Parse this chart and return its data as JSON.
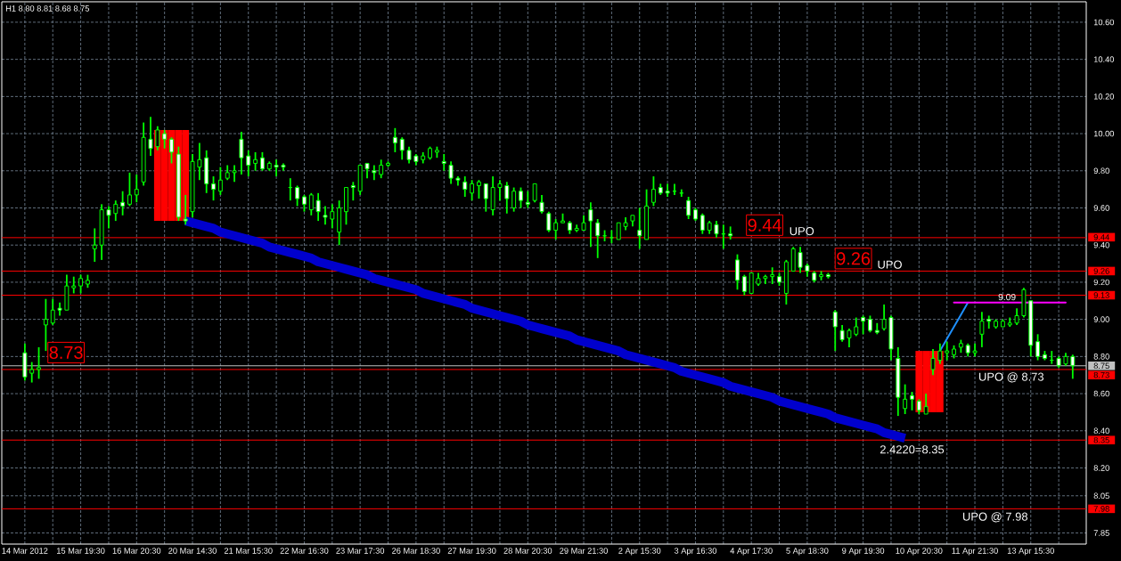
{
  "chart_data": {
    "type": "candlestick",
    "title": "H1 8.80 8.81 8.68 8.75",
    "color": "#00ff00",
    "categories": [
      "14 Mar 2012",
      null,
      null,
      null,
      null,
      null,
      null,
      null,
      "15 Mar 19:30",
      null,
      null,
      null,
      null,
      null,
      null,
      null,
      "16 Mar 20:30",
      null,
      null,
      null,
      null,
      null,
      null,
      null,
      "20 Mar 14:30",
      null,
      null,
      null,
      null,
      null,
      null,
      null,
      "21 Mar 15:30",
      null,
      null,
      null,
      null,
      null,
      null,
      null,
      "22 Mar 16:30",
      null,
      null,
      null,
      null,
      null,
      null,
      null,
      "23 Mar 17:30",
      null,
      null,
      null,
      null,
      null,
      null,
      null,
      "26 Mar 18:30",
      null,
      null,
      null,
      null,
      null,
      null,
      null,
      "27 Mar 19:30",
      null,
      null,
      null,
      null,
      null,
      null,
      null,
      "28 Mar 20:30",
      null,
      null,
      null,
      null,
      null,
      null,
      null,
      "29 Mar 21:30",
      null,
      null,
      null,
      null,
      null,
      null,
      null,
      "2 Apr 15:30",
      null,
      null,
      null,
      null,
      null,
      null,
      null,
      "3 Apr 16:30",
      null,
      null,
      null,
      null,
      null,
      null,
      null,
      "4 Apr 17:30",
      null,
      null,
      null,
      null,
      null,
      null,
      null,
      "5 Apr 18:30",
      null,
      null,
      null,
      null,
      null,
      null,
      null,
      "9 Apr 19:30",
      null,
      null,
      null,
      null,
      null,
      null,
      null,
      "10 Apr 20:30",
      null,
      null,
      null,
      null,
      null,
      null,
      null,
      "11 Apr 21:30",
      null,
      null,
      null,
      null,
      null,
      null,
      null,
      "13 Apr 15:30",
      null,
      null,
      null,
      null,
      null,
      null
    ],
    "ohlc": [
      [
        8.82,
        8.87,
        8.67,
        8.69
      ],
      [
        8.71,
        8.77,
        8.66,
        8.73
      ],
      [
        8.73,
        8.85,
        8.68,
        8.74
      ],
      [
        8.97,
        9.11,
        8.83,
        9.0
      ],
      [
        8.98,
        9.11,
        8.97,
        9.05
      ],
      [
        9.06,
        9.09,
        9.02,
        9.05
      ],
      [
        9.05,
        9.24,
        9.05,
        9.18
      ],
      [
        9.17,
        9.23,
        9.14,
        9.18
      ],
      [
        9.18,
        9.24,
        9.14,
        9.22
      ],
      [
        9.19,
        9.24,
        9.17,
        9.21
      ],
      [
        9.38,
        9.49,
        9.31,
        9.4
      ],
      [
        9.4,
        9.62,
        9.32,
        9.59
      ],
      [
        9.59,
        9.61,
        9.49,
        9.56
      ],
      [
        9.57,
        9.64,
        9.53,
        9.62
      ],
      [
        9.63,
        9.69,
        9.56,
        9.61
      ],
      [
        9.62,
        9.79,
        9.61,
        9.67
      ],
      [
        9.67,
        9.78,
        9.63,
        9.7
      ],
      [
        9.74,
        10.06,
        9.72,
        9.98
      ],
      [
        9.97,
        10.09,
        9.88,
        9.92
      ],
      [
        9.93,
        10.04,
        9.91,
        10.02
      ],
      [
        10.0,
        10.02,
        9.92,
        9.97
      ],
      [
        9.97,
        9.98,
        9.84,
        9.9
      ],
      [
        9.89,
        9.93,
        9.53,
        9.55
      ],
      [
        9.54,
        9.67,
        9.51,
        9.53
      ],
      [
        9.58,
        9.89,
        9.55,
        9.85
      ],
      [
        9.82,
        9.95,
        9.75,
        9.86
      ],
      [
        9.87,
        9.91,
        9.68,
        9.73
      ],
      [
        9.73,
        9.77,
        9.64,
        9.7
      ],
      [
        9.69,
        9.82,
        9.67,
        9.75
      ],
      [
        9.76,
        9.83,
        9.75,
        9.79
      ],
      [
        9.79,
        9.83,
        9.74,
        9.8
      ],
      [
        9.97,
        10.01,
        9.78,
        9.87
      ],
      [
        9.88,
        9.91,
        9.77,
        9.83
      ],
      [
        9.84,
        9.9,
        9.8,
        9.86
      ],
      [
        9.87,
        9.9,
        9.8,
        9.81
      ],
      [
        9.81,
        9.85,
        9.8,
        9.84
      ],
      [
        9.83,
        9.86,
        9.77,
        9.82
      ],
      [
        9.83,
        9.84,
        9.8,
        9.82
      ],
      [
        9.71,
        9.76,
        9.64,
        9.71
      ],
      [
        9.71,
        9.72,
        9.61,
        9.65
      ],
      [
        9.66,
        9.67,
        9.58,
        9.62
      ],
      [
        9.59,
        9.68,
        9.56,
        9.67
      ],
      [
        9.64,
        9.68,
        9.53,
        9.58
      ],
      [
        9.56,
        9.61,
        9.51,
        9.55
      ],
      [
        9.54,
        9.62,
        9.49,
        9.58
      ],
      [
        9.47,
        9.64,
        9.4,
        9.6
      ],
      [
        9.58,
        9.71,
        9.51,
        9.71
      ],
      [
        9.72,
        9.74,
        9.64,
        9.71
      ],
      [
        9.69,
        9.83,
        9.67,
        9.83
      ],
      [
        9.84,
        9.84,
        9.76,
        9.81
      ],
      [
        9.8,
        9.83,
        9.75,
        9.79
      ],
      [
        9.78,
        9.86,
        9.76,
        9.83
      ],
      [
        9.83,
        9.85,
        9.82,
        9.84
      ],
      [
        9.98,
        10.03,
        9.9,
        9.95
      ],
      [
        9.97,
        9.98,
        9.86,
        9.91
      ],
      [
        9.91,
        9.93,
        9.84,
        9.86
      ],
      [
        9.88,
        9.89,
        9.83,
        9.85
      ],
      [
        9.86,
        9.9,
        9.84,
        9.88
      ],
      [
        9.87,
        9.93,
        9.86,
        9.92
      ],
      [
        9.9,
        9.93,
        9.87,
        9.91
      ],
      [
        9.85,
        9.89,
        9.8,
        9.84
      ],
      [
        9.83,
        9.85,
        9.73,
        9.76
      ],
      [
        9.76,
        9.77,
        9.72,
        9.75
      ],
      [
        9.74,
        9.77,
        9.66,
        9.7
      ],
      [
        9.68,
        9.75,
        9.64,
        9.73
      ],
      [
        9.72,
        9.75,
        9.65,
        9.74
      ],
      [
        9.73,
        9.73,
        9.58,
        9.65
      ],
      [
        9.59,
        9.77,
        9.56,
        9.71
      ],
      [
        9.71,
        9.75,
        9.64,
        9.73
      ],
      [
        9.72,
        9.74,
        9.57,
        9.65
      ],
      [
        9.6,
        9.71,
        9.58,
        9.69
      ],
      [
        9.69,
        9.71,
        9.6,
        9.64
      ],
      [
        9.63,
        9.69,
        9.6,
        9.62
      ],
      [
        9.64,
        9.73,
        9.63,
        9.73
      ],
      [
        9.63,
        9.67,
        9.57,
        9.58
      ],
      [
        9.57,
        9.58,
        9.47,
        9.48
      ],
      [
        9.48,
        9.54,
        9.43,
        9.52
      ],
      [
        9.52,
        9.57,
        9.52,
        9.53
      ],
      [
        9.52,
        9.53,
        9.46,
        9.48
      ],
      [
        9.48,
        9.51,
        9.47,
        9.49
      ],
      [
        9.48,
        9.56,
        9.48,
        9.52
      ],
      [
        9.59,
        9.63,
        9.39,
        9.53
      ],
      [
        9.52,
        9.54,
        9.33,
        9.45
      ],
      [
        9.45,
        9.48,
        9.42,
        9.45
      ],
      [
        9.44,
        9.48,
        9.41,
        9.44
      ],
      [
        9.43,
        9.52,
        9.43,
        9.52
      ],
      [
        9.5,
        9.55,
        9.48,
        9.52
      ],
      [
        9.53,
        9.56,
        9.5,
        9.56
      ],
      [
        9.48,
        9.6,
        9.38,
        9.45
      ],
      [
        9.43,
        9.7,
        9.43,
        9.61
      ],
      [
        9.63,
        9.77,
        9.61,
        9.7
      ],
      [
        9.71,
        9.73,
        9.67,
        9.68
      ],
      [
        9.69,
        9.73,
        9.66,
        9.68
      ],
      [
        9.69,
        9.73,
        9.67,
        9.69
      ],
      [
        9.68,
        9.7,
        9.66,
        9.68
      ],
      [
        9.64,
        9.66,
        9.54,
        9.56
      ],
      [
        9.59,
        9.6,
        9.53,
        9.54
      ],
      [
        9.56,
        9.57,
        9.46,
        9.48
      ],
      [
        9.48,
        9.53,
        9.46,
        9.52
      ],
      [
        9.51,
        9.53,
        9.44,
        9.46
      ],
      [
        9.46,
        9.51,
        9.38,
        9.46
      ],
      [
        9.46,
        9.5,
        9.43,
        9.45
      ],
      [
        9.32,
        9.35,
        9.16,
        9.21
      ],
      [
        9.23,
        9.24,
        9.13,
        9.15
      ],
      [
        9.14,
        9.25,
        9.14,
        9.25
      ],
      [
        9.19,
        9.25,
        9.18,
        9.22
      ],
      [
        9.22,
        9.24,
        9.19,
        9.23
      ],
      [
        9.23,
        9.28,
        9.19,
        9.24
      ],
      [
        9.23,
        9.25,
        9.18,
        9.2
      ],
      [
        9.14,
        9.32,
        9.08,
        9.31
      ],
      [
        9.26,
        9.39,
        9.26,
        9.38
      ],
      [
        9.36,
        9.39,
        9.25,
        9.28
      ],
      [
        9.29,
        9.3,
        9.23,
        9.26
      ],
      [
        9.25,
        9.26,
        9.2,
        9.21
      ],
      [
        9.23,
        9.26,
        9.21,
        9.24
      ],
      [
        9.24,
        9.25,
        9.22,
        9.23
      ],
      [
        9.04,
        9.05,
        8.83,
        8.96
      ],
      [
        8.94,
        8.97,
        8.88,
        8.89
      ],
      [
        8.9,
        8.95,
        8.85,
        8.94
      ],
      [
        8.92,
        9.01,
        8.91,
        8.96
      ],
      [
        9.01,
        9.02,
        8.92,
        8.99
      ],
      [
        9.0,
        9.02,
        8.93,
        8.94
      ],
      [
        8.94,
        8.98,
        8.92,
        8.93
      ],
      [
        8.95,
        9.08,
        8.94,
        9.0
      ],
      [
        9.01,
        9.02,
        8.78,
        8.84
      ],
      [
        8.79,
        8.85,
        8.48,
        8.58
      ],
      [
        8.52,
        8.65,
        8.49,
        8.57
      ],
      [
        8.59,
        8.61,
        8.51,
        8.57
      ],
      [
        8.56,
        8.57,
        8.49,
        8.51
      ],
      [
        8.49,
        8.6,
        8.49,
        8.53
      ],
      [
        8.73,
        8.84,
        8.7,
        8.79
      ],
      [
        8.78,
        8.87,
        8.76,
        8.83
      ],
      [
        8.82,
        8.88,
        8.78,
        8.83
      ],
      [
        8.81,
        8.86,
        8.79,
        8.84
      ],
      [
        8.85,
        8.89,
        8.82,
        8.87
      ],
      [
        8.86,
        8.87,
        8.8,
        8.82
      ],
      [
        8.82,
        8.87,
        8.8,
        8.83
      ],
      [
        8.92,
        9.04,
        8.85,
        8.99
      ],
      [
        9.0,
        9.02,
        8.95,
        8.99
      ],
      [
        8.96,
        9.0,
        8.95,
        8.99
      ],
      [
        8.96,
        9.0,
        8.96,
        8.99
      ],
      [
        8.97,
        9.01,
        8.96,
        8.98
      ],
      [
        8.98,
        9.06,
        8.97,
        9.02
      ],
      [
        9.02,
        9.17,
        9.01,
        9.16
      ],
      [
        9.1,
        9.1,
        8.8,
        8.86
      ],
      [
        8.88,
        8.92,
        8.78,
        8.8
      ],
      [
        8.81,
        8.83,
        8.78,
        8.79
      ],
      [
        8.78,
        8.83,
        8.76,
        8.78
      ],
      [
        8.79,
        8.8,
        8.74,
        8.75
      ],
      [
        8.76,
        8.82,
        8.75,
        8.8
      ],
      [
        8.8,
        8.81,
        8.68,
        8.75
      ]
    ],
    "series": [
      {
        "type": "bar",
        "color": "#ff0000",
        "base": [
          null,
          null,
          null,
          null,
          null,
          null,
          null,
          null,
          null,
          null,
          null,
          null,
          null,
          null,
          null,
          null,
          null,
          null,
          null,
          9.53,
          9.53,
          9.53,
          9.53,
          9.53,
          null,
          null,
          null,
          null,
          null,
          null,
          null,
          null,
          null,
          null,
          null,
          null,
          null,
          null,
          null,
          null,
          null,
          null,
          null,
          null,
          null,
          null,
          null,
          null,
          null,
          null,
          null,
          null,
          null,
          null,
          null,
          null,
          null,
          null,
          null,
          null,
          null,
          null,
          null,
          null,
          null,
          null,
          null,
          null,
          null,
          null,
          null,
          null,
          null,
          null,
          null,
          null,
          null,
          null,
          null,
          null,
          null,
          null,
          null,
          null,
          null,
          null,
          null,
          null,
          null,
          null,
          null,
          null,
          null,
          null,
          null,
          null,
          null,
          null,
          null,
          null,
          null,
          null,
          null,
          null,
          null,
          null,
          null,
          null,
          null,
          null,
          null,
          null,
          null,
          null,
          null,
          null,
          null,
          null,
          null,
          null,
          null,
          null,
          null,
          null,
          null,
          null,
          null,
          null,
          null,
          null,
          null,
          null,
          null,
          null,
          null,
          null,
          null,
          null,
          null,
          null,
          null,
          null,
          null,
          null,
          null,
          null,
          null,
          null,
          null,
          null,
          null
        ],
        "values": [
          null,
          null,
          null,
          null,
          null,
          null,
          null,
          null,
          null,
          null,
          null,
          null,
          null,
          null,
          null,
          null,
          null,
          null,
          null,
          0.49,
          0.49,
          0.49,
          0.49,
          0.49,
          null,
          null,
          null,
          null,
          null,
          null,
          null,
          null,
          null,
          null,
          null,
          null,
          null,
          null,
          null,
          null,
          null,
          null,
          null,
          null,
          null,
          null,
          null,
          null,
          null,
          null,
          null,
          null,
          null,
          null,
          null,
          null,
          null,
          null,
          null,
          null,
          null,
          null,
          null,
          null,
          null,
          null,
          null,
          null,
          null,
          null,
          null,
          null,
          null,
          null,
          null,
          null,
          null,
          null,
          null,
          null,
          null,
          null,
          null,
          null,
          null,
          null,
          null,
          null,
          null,
          null,
          null,
          null,
          null,
          null,
          null,
          null,
          null,
          null,
          null,
          null,
          null,
          null,
          null,
          null,
          null,
          null,
          null,
          null,
          null,
          null,
          null,
          null,
          null,
          null,
          null,
          null,
          null,
          null,
          null,
          null,
          null,
          null,
          null,
          null,
          null,
          null,
          null,
          null,
          null,
          null,
          null,
          null,
          null,
          null,
          null,
          null,
          null,
          null,
          null,
          null,
          null,
          null,
          null,
          null,
          null,
          null,
          null,
          null,
          null,
          null,
          null
        ]
      },
      {
        "type": "bar",
        "color": "#ff0000",
        "base": [
          null,
          null,
          null,
          null,
          null,
          null,
          null,
          null,
          null,
          null,
          null,
          null,
          null,
          null,
          null,
          null,
          null,
          null,
          null,
          null,
          null,
          null,
          null,
          null,
          null,
          null,
          null,
          null,
          null,
          null,
          null,
          null,
          null,
          null,
          null,
          null,
          null,
          null,
          null,
          null,
          null,
          null,
          null,
          null,
          null,
          null,
          null,
          null,
          null,
          null,
          null,
          null,
          null,
          null,
          null,
          null,
          null,
          null,
          null,
          null,
          null,
          null,
          null,
          null,
          null,
          null,
          null,
          null,
          null,
          null,
          null,
          null,
          null,
          null,
          null,
          null,
          null,
          null,
          null,
          null,
          null,
          null,
          null,
          null,
          null,
          null,
          null,
          null,
          null,
          null,
          null,
          null,
          null,
          null,
          null,
          null,
          null,
          null,
          null,
          null,
          null,
          null,
          null,
          null,
          null,
          null,
          null,
          null,
          null,
          null,
          null,
          null,
          null,
          null,
          null,
          null,
          null,
          null,
          null,
          null,
          null,
          null,
          null,
          null,
          null,
          null,
          null,
          null,
          8.5,
          8.5,
          8.5,
          8.5,
          null,
          null,
          null,
          null,
          null,
          null,
          null,
          null,
          null,
          null,
          null,
          null,
          null,
          null,
          null,
          null,
          null,
          null,
          null
        ],
        "values": [
          null,
          null,
          null,
          null,
          null,
          null,
          null,
          null,
          null,
          null,
          null,
          null,
          null,
          null,
          null,
          null,
          null,
          null,
          null,
          null,
          null,
          null,
          null,
          null,
          null,
          null,
          null,
          null,
          null,
          null,
          null,
          null,
          null,
          null,
          null,
          null,
          null,
          null,
          null,
          null,
          null,
          null,
          null,
          null,
          null,
          null,
          null,
          null,
          null,
          null,
          null,
          null,
          null,
          null,
          null,
          null,
          null,
          null,
          null,
          null,
          null,
          null,
          null,
          null,
          null,
          null,
          null,
          null,
          null,
          null,
          null,
          null,
          null,
          null,
          null,
          null,
          null,
          null,
          null,
          null,
          null,
          null,
          null,
          null,
          null,
          null,
          null,
          null,
          null,
          null,
          null,
          null,
          null,
          null,
          null,
          null,
          null,
          null,
          null,
          null,
          null,
          null,
          null,
          null,
          null,
          null,
          null,
          null,
          null,
          null,
          null,
          null,
          null,
          null,
          null,
          null,
          null,
          null,
          null,
          null,
          null,
          null,
          null,
          null,
          null,
          null,
          null,
          null,
          0.33,
          0.33,
          0.33,
          0.33,
          null,
          null,
          null,
          null,
          null,
          null,
          null,
          null,
          null,
          null,
          null,
          null,
          null,
          null,
          null,
          null,
          null,
          null,
          null
        ]
      },
      {
        "type": "line",
        "color": "#0000cd",
        "values": [
          null,
          null,
          null,
          null,
          null,
          null,
          null,
          null,
          null,
          null,
          null,
          null,
          null,
          null,
          null,
          null,
          null,
          null,
          null,
          null,
          null,
          null,
          null,
          9.53,
          9.52,
          9.51,
          9.5,
          9.49,
          9.47,
          9.46,
          9.45,
          9.44,
          9.43,
          9.42,
          9.41,
          9.39,
          9.38,
          9.37,
          9.36,
          9.35,
          9.34,
          9.33,
          9.31,
          9.3,
          9.29,
          9.28,
          9.27,
          9.26,
          9.25,
          9.24,
          9.22,
          9.21,
          9.2,
          9.19,
          9.18,
          9.17,
          9.16,
          9.14,
          9.13,
          9.12,
          9.11,
          9.1,
          9.09,
          9.08,
          9.06,
          9.05,
          9.04,
          9.03,
          9.02,
          9.01,
          9.0,
          8.99,
          8.97,
          8.96,
          8.95,
          8.94,
          8.93,
          8.92,
          8.91,
          8.89,
          8.88,
          8.87,
          8.86,
          8.85,
          8.84,
          8.83,
          8.81,
          8.8,
          8.79,
          8.78,
          8.77,
          8.76,
          8.75,
          8.74,
          8.72,
          8.71,
          8.7,
          8.69,
          8.68,
          8.67,
          8.66,
          8.64,
          8.63,
          8.62,
          8.61,
          8.6,
          8.59,
          8.58,
          8.56,
          8.55,
          8.54,
          8.53,
          8.52,
          8.51,
          8.5,
          8.49,
          8.47,
          8.46,
          8.45,
          8.44,
          8.43,
          8.42,
          8.41,
          8.39,
          8.38,
          8.37,
          8.36,
          null,
          null,
          null,
          null,
          null,
          null,
          null,
          null,
          null,
          null,
          null,
          null,
          null,
          null,
          null,
          null,
          null,
          null,
          null,
          null,
          null,
          null,
          null,
          null
        ]
      },
      {
        "type": "line",
        "color": "#1e90ff",
        "values": [
          null,
          null,
          null,
          null,
          null,
          null,
          null,
          null,
          null,
          null,
          null,
          null,
          null,
          null,
          null,
          null,
          null,
          null,
          null,
          null,
          null,
          null,
          null,
          null,
          null,
          null,
          null,
          null,
          null,
          null,
          null,
          null,
          null,
          null,
          null,
          null,
          null,
          null,
          null,
          null,
          null,
          null,
          null,
          null,
          null,
          null,
          null,
          null,
          null,
          null,
          null,
          null,
          null,
          null,
          null,
          null,
          null,
          null,
          null,
          null,
          null,
          null,
          null,
          null,
          null,
          null,
          null,
          null,
          null,
          null,
          null,
          null,
          null,
          null,
          null,
          null,
          null,
          null,
          null,
          null,
          null,
          null,
          null,
          null,
          null,
          null,
          null,
          null,
          null,
          null,
          null,
          null,
          null,
          null,
          null,
          null,
          null,
          null,
          null,
          null,
          null,
          null,
          null,
          null,
          null,
          null,
          null,
          null,
          null,
          null,
          null,
          null,
          null,
          null,
          null,
          null,
          null,
          null,
          null,
          null,
          null,
          null,
          null,
          null,
          null,
          null,
          null,
          null,
          null,
          null,
          null,
          8.83,
          8.895,
          8.96,
          9.025,
          9.09,
          null,
          null,
          null,
          null,
          null,
          null,
          null,
          null,
          null,
          null,
          null,
          null,
          null,
          null,
          null
        ]
      },
      {
        "type": "line",
        "color": "#ff00ff",
        "values": [
          null,
          null,
          null,
          null,
          null,
          null,
          null,
          null,
          null,
          null,
          null,
          null,
          null,
          null,
          null,
          null,
          null,
          null,
          null,
          null,
          null,
          null,
          null,
          null,
          null,
          null,
          null,
          null,
          null,
          null,
          null,
          null,
          null,
          null,
          null,
          null,
          null,
          null,
          null,
          null,
          null,
          null,
          null,
          null,
          null,
          null,
          null,
          null,
          null,
          null,
          null,
          null,
          null,
          null,
          null,
          null,
          null,
          null,
          null,
          null,
          null,
          null,
          null,
          null,
          null,
          null,
          null,
          null,
          null,
          null,
          null,
          null,
          null,
          null,
          null,
          null,
          null,
          null,
          null,
          null,
          null,
          null,
          null,
          null,
          null,
          null,
          null,
          null,
          null,
          null,
          null,
          null,
          null,
          null,
          null,
          null,
          null,
          null,
          null,
          null,
          null,
          null,
          null,
          null,
          null,
          null,
          null,
          null,
          null,
          null,
          null,
          null,
          null,
          null,
          null,
          null,
          null,
          null,
          null,
          null,
          null,
          null,
          null,
          null,
          null,
          null,
          null,
          null,
          null,
          null,
          null,
          null,
          null,
          9.09,
          9.09,
          9.09,
          9.09,
          9.09,
          9.09,
          9.09,
          9.09,
          9.09,
          9.09,
          9.09,
          9.09,
          9.09,
          9.09,
          9.09,
          9.09,
          9.09,
          null
        ]
      }
    ],
    "ref_lines": [
      {
        "axis": "y",
        "value": 9.44,
        "label": "9.44",
        "color": "#ff0000"
      },
      {
        "axis": "y",
        "value": 9.26,
        "label": "9.26",
        "color": "#ff0000"
      },
      {
        "axis": "y",
        "value": 9.13,
        "label": "9.13",
        "color": "#ff0000"
      },
      {
        "axis": "y",
        "value": 8.75,
        "label": "8.75",
        "color": "#c0c0c0"
      },
      {
        "axis": "y",
        "value": 8.73,
        "label": "8.73",
        "color": "#ff0000"
      },
      {
        "axis": "y",
        "value": 8.35,
        "label": "8.35",
        "color": "#ff0000"
      },
      {
        "axis": "y",
        "value": 7.98,
        "label": "7.98",
        "color": "#ff0000"
      }
    ],
    "annotations": [
      "8.73",
      {
        "text": "9.44",
        "y": 9.44
      },
      {
        "text": "UPO",
        "y": 9.44
      },
      {
        "text": "9.26",
        "y": 9.26
      },
      {
        "text": "UPO",
        "y": 9.26
      },
      "UPO @ 8.73",
      "2.4220=8.35",
      "UPO @ 7.98",
      {
        "text": "9.09",
        "y": 9.09
      }
    ],
    "ylim": [
      7.79,
      10.71
    ],
    "yticks": [
      {
        "value": 7.85,
        "label": "7.85"
      },
      {
        "value": 8.05,
        "label": "8.05"
      },
      {
        "value": 8.2,
        "label": "8.20"
      },
      {
        "value": 8.4,
        "label": "8.40"
      },
      {
        "value": 8.6,
        "label": "8.60"
      },
      {
        "value": 8.8,
        "label": "8.80"
      },
      {
        "value": 9,
        "label": "9.00"
      },
      {
        "value": 9.2,
        "label": "9.20"
      },
      {
        "value": 9.4,
        "label": "9.40"
      },
      {
        "value": 9.6,
        "label": "9.60"
      },
      {
        "value": 9.8,
        "label": "9.80"
      },
      {
        "value": 10,
        "label": "10.00"
      },
      {
        "value": 10.2,
        "label": "10.20"
      },
      {
        "value": 10.4,
        "label": "10.40"
      },
      {
        "value": 10.6,
        "label": "10.60"
      }
    ],
    "grid": true
  }
}
